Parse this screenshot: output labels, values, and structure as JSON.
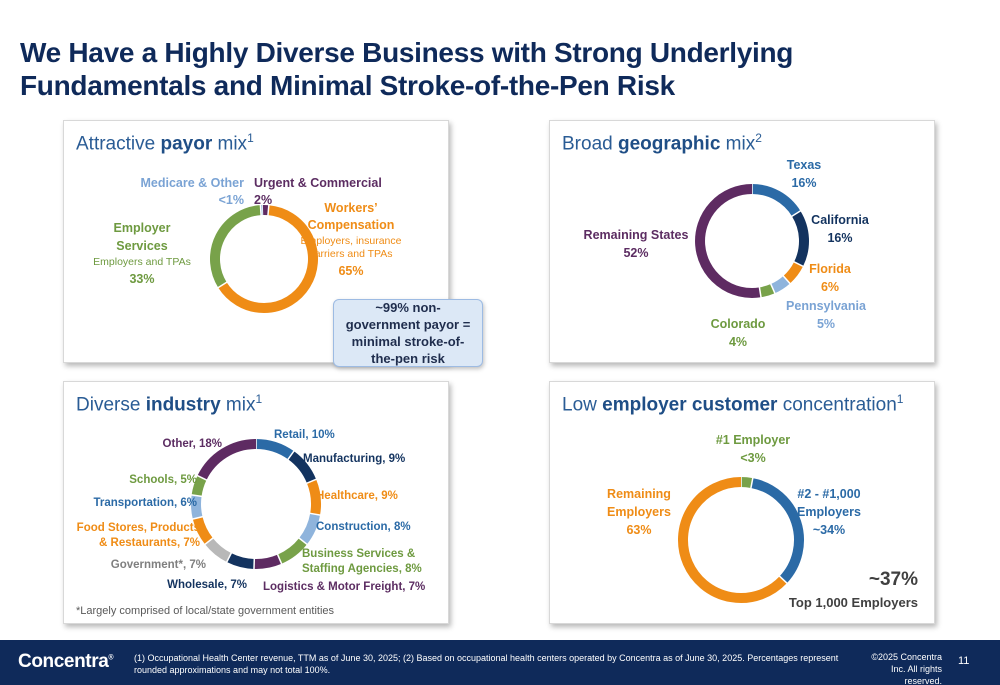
{
  "slide": {
    "title_line1": "We Have a Highly Diverse Business with Strong Underlying",
    "title_line2": "Fundamentals and Minimal Stroke-of-the-Pen Risk",
    "callout": "~99% non-government payor = minimal stroke-of-the-pen risk",
    "footnote": "(1) Occupational Health Center revenue, TTM as of June 30, 2025; (2) Based on occupational health centers operated by Concentra as of June 30, 2025. Percentages represent rounded approximations and may not total 100%.",
    "copyright": "©2025 Concentra Inc. All rights reserved.",
    "page_number": "11",
    "logo_text": "Concentra",
    "logo_mark": "®"
  },
  "panels": {
    "payor": {
      "title_pre": "Attractive ",
      "title_bold": "payor",
      "title_post": " mix",
      "title_sup": "1"
    },
    "geo": {
      "title_pre": "Broad ",
      "title_bold": "geographic",
      "title_post": " mix",
      "title_sup": "2"
    },
    "industry": {
      "title_pre": "Diverse ",
      "title_bold": "industry",
      "title_post": " mix",
      "title_sup": "1",
      "note": "*Largely comprised of local/state government entities"
    },
    "concentration": {
      "title_pre": "Low ",
      "title_bold": "employer customer",
      "title_post": " concentration",
      "title_sup": "1",
      "big_value": "~37%",
      "big_label": "Top 1,000 Employers"
    }
  },
  "colors": {
    "navy": "#0f2a5a",
    "blue": "#2b6aa6",
    "darkblue": "#13335f",
    "orange": "#ef8c16",
    "lightblue": "#8fb4dc",
    "green": "#78a24a",
    "purple": "#5e2b62",
    "gray": "#b8b8b8",
    "label_purple": "#5c2d62",
    "label_orange": "#ef8c16",
    "label_green": "#6e9a40",
    "label_lightblue": "#7aa3d4"
  },
  "chart_data": [
    {
      "type": "pie",
      "title": "Attractive payor mix",
      "categories": [
        "Urgent & Commercial",
        "Workers' Compensation",
        "Employer Services",
        "Medicare & Other"
      ],
      "values": [
        2,
        65,
        33,
        0.5
      ],
      "value_labels": [
        "2%",
        "65%",
        "33%",
        "<1%"
      ],
      "sublabels": [
        "",
        "Employers, insurance carriers and TPAs",
        "Employers and TPAs",
        ""
      ],
      "colors": [
        "#5e2b62",
        "#ef8c16",
        "#78a24a",
        "#8fb4dc"
      ]
    },
    {
      "type": "pie",
      "title": "Broad geographic mix",
      "categories": [
        "Texas",
        "California",
        "Florida",
        "Pennsylvania",
        "Colorado",
        "Remaining States"
      ],
      "values": [
        16,
        16,
        6,
        5,
        4,
        52
      ],
      "value_labels": [
        "16%",
        "16%",
        "6%",
        "5%",
        "4%",
        "52%"
      ],
      "colors": [
        "#2b6aa6",
        "#13335f",
        "#ef8c16",
        "#8fb4dc",
        "#78a24a",
        "#5e2b62"
      ]
    },
    {
      "type": "pie",
      "title": "Diverse industry mix",
      "categories": [
        "Retail",
        "Manufacturing",
        "Healthcare",
        "Construction",
        "Business Services & Staffing Agencies",
        "Logistics & Motor Freight",
        "Wholesale",
        "Government*",
        "Food Stores, Products & Restaurants",
        "Transportation",
        "Schools",
        "Other"
      ],
      "values": [
        10,
        9,
        9,
        8,
        8,
        7,
        7,
        7,
        7,
        6,
        5,
        18
      ],
      "value_labels": [
        "10%",
        "9%",
        "9%",
        "8%",
        "8%",
        "7%",
        "7%",
        "7%",
        "7%",
        "6%",
        "5%",
        "18%"
      ],
      "colors": [
        "#2b6aa6",
        "#13335f",
        "#ef8c16",
        "#8fb4dc",
        "#78a24a",
        "#5e2b62",
        "#13335f",
        "#b8b8b8",
        "#ef8c16",
        "#8fb4dc",
        "#78a24a",
        "#5e2b62"
      ]
    },
    {
      "type": "pie",
      "title": "Low employer customer concentration",
      "categories": [
        "#1 Employer",
        "#2 - #1,000 Employers",
        "Remaining Employers"
      ],
      "values": [
        3,
        34,
        63
      ],
      "value_labels": [
        "<3%",
        "~34%",
        "63%"
      ],
      "colors": [
        "#78a24a",
        "#2b6aa6",
        "#ef8c16"
      ]
    }
  ],
  "labels": {
    "payor": [
      {
        "lines": [
          "Urgent & Commercial",
          "2%"
        ],
        "color": "#5c2d62"
      },
      {
        "lines": [
          "Workers’",
          "Compensation"
        ],
        "sub": [
          "Employers, insurance",
          "carriers and TPAs"
        ],
        "value": "65%",
        "color": "#ef8c16"
      },
      {
        "lines": [
          "Employer",
          "Services"
        ],
        "sub": [
          "Employers and TPAs"
        ],
        "value": "33%",
        "color": "#6e9a40"
      },
      {
        "lines": [
          "Medicare & Other",
          "<1%"
        ],
        "color": "#7aa3d4"
      }
    ],
    "geo": [
      {
        "lines": [
          "Texas",
          "16%"
        ],
        "color": "#2b6aa6"
      },
      {
        "lines": [
          "California",
          "16%"
        ],
        "color": "#13335f"
      },
      {
        "lines": [
          "Florida",
          "6%"
        ],
        "color": "#ef8c16"
      },
      {
        "lines": [
          "Pennsylvania",
          "5%"
        ],
        "color": "#7aa3d4"
      },
      {
        "lines": [
          "Colorado",
          "4%"
        ],
        "color": "#6e9a40"
      },
      {
        "lines": [
          "Remaining States",
          "52%"
        ],
        "color": "#5c2d62"
      }
    ],
    "industry": [
      {
        "lines": [
          "Retail, 10%"
        ],
        "color": "#2b6aa6"
      },
      {
        "lines": [
          "Manufacturing, 9%"
        ],
        "color": "#13335f"
      },
      {
        "lines": [
          "Healthcare, 9%"
        ],
        "color": "#ef8c16"
      },
      {
        "lines": [
          "Construction, 8%"
        ],
        "color": "#2b6aa6"
      },
      {
        "lines": [
          "Business Services &",
          "Staffing Agencies, 8%"
        ],
        "color": "#6e9a40"
      },
      {
        "lines": [
          "Logistics & Motor Freight, 7%"
        ],
        "color": "#5c2d62"
      },
      {
        "lines": [
          "Wholesale, 7%"
        ],
        "color": "#13335f"
      },
      {
        "lines": [
          "Government*, 7%"
        ],
        "color": "#7f7f7f"
      },
      {
        "lines": [
          "Food Stores, Products",
          "& Restaurants, 7%"
        ],
        "color": "#ef8c16"
      },
      {
        "lines": [
          "Transportation, 6%"
        ],
        "color": "#2b6aa6"
      },
      {
        "lines": [
          "Schools, 5%"
        ],
        "color": "#6e9a40"
      },
      {
        "lines": [
          "Other, 18%"
        ],
        "color": "#5c2d62"
      }
    ],
    "concentration": [
      {
        "lines": [
          "#1 Employer",
          "<3%"
        ],
        "color": "#6e9a40"
      },
      {
        "lines": [
          "#2 - #1,000",
          "Employers",
          "~34%"
        ],
        "color": "#2b6aa6"
      },
      {
        "lines": [
          "Remaining",
          "Employers",
          "63%"
        ],
        "color": "#ef8c16"
      }
    ]
  }
}
